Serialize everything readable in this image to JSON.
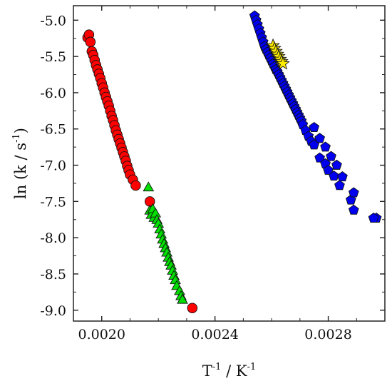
{
  "chart_data": {
    "type": "scatter",
    "title": "",
    "xlabel": {
      "base": "T",
      "sup": "-1",
      "sep": " / ",
      "unit": "K",
      "unit_sup": "-1"
    },
    "ylabel": {
      "prefix": "ln (k  / s",
      "sup": "-1",
      "suffix": ")"
    },
    "xlim": [
      0.0019,
      0.003
    ],
    "ylim": [
      -9.15,
      -4.8
    ],
    "x_ticks": [
      0.002,
      0.0024,
      0.0028
    ],
    "x_tick_labels": [
      "0.0020",
      "0.0024",
      "0.0028"
    ],
    "y_ticks": [
      -5.0,
      -5.5,
      -6.0,
      -6.5,
      -7.0,
      -7.5,
      -8.0,
      -8.5,
      -9.0
    ],
    "y_tick_labels": [
      "-5.0",
      "-5.5",
      "-6.0",
      "-6.5",
      "-7.0",
      "-7.5",
      "-8.0",
      "-8.5",
      "-9.0"
    ],
    "grid": false,
    "legend": "none",
    "series": [
      {
        "marker": "circle",
        "color": "#ff0000",
        "points": [
          [
            0.00195,
            -5.24
          ],
          [
            0.001955,
            -5.2
          ],
          [
            0.00196,
            -5.3
          ],
          [
            0.001965,
            -5.43
          ],
          [
            0.00197,
            -5.48
          ],
          [
            0.001975,
            -5.55
          ],
          [
            0.00198,
            -5.62
          ],
          [
            0.001985,
            -5.68
          ],
          [
            0.00199,
            -5.74
          ],
          [
            0.001995,
            -5.8
          ],
          [
            0.002,
            -5.87
          ],
          [
            0.002005,
            -5.93
          ],
          [
            0.00201,
            -6.0
          ],
          [
            0.002015,
            -6.06
          ],
          [
            0.00202,
            -6.12
          ],
          [
            0.002025,
            -6.18
          ],
          [
            0.00203,
            -6.25
          ],
          [
            0.002035,
            -6.32
          ],
          [
            0.00204,
            -6.38
          ],
          [
            0.002045,
            -6.45
          ],
          [
            0.00205,
            -6.52
          ],
          [
            0.002055,
            -6.58
          ],
          [
            0.00206,
            -6.64
          ],
          [
            0.002065,
            -6.7
          ],
          [
            0.00207,
            -6.76
          ],
          [
            0.002075,
            -6.82
          ],
          [
            0.00208,
            -6.88
          ],
          [
            0.002085,
            -6.94
          ],
          [
            0.00209,
            -7.01
          ],
          [
            0.002095,
            -7.07
          ],
          [
            0.0021,
            -7.13
          ],
          [
            0.00211,
            -7.2
          ],
          [
            0.00212,
            -7.28
          ],
          [
            0.00217,
            -7.5
          ],
          [
            0.00232,
            -8.97
          ]
        ]
      },
      {
        "marker": "triangle",
        "color": "#00dd00",
        "points": [
          [
            0.002165,
            -7.3
          ],
          [
            0.00217,
            -7.62
          ],
          [
            0.002175,
            -7.68
          ],
          [
            0.00218,
            -7.6
          ],
          [
            0.002185,
            -7.72
          ],
          [
            0.00219,
            -7.66
          ],
          [
            0.002195,
            -7.75
          ],
          [
            0.0022,
            -7.8
          ],
          [
            0.002205,
            -7.88
          ],
          [
            0.00221,
            -7.95
          ],
          [
            0.002215,
            -8.02
          ],
          [
            0.00222,
            -8.08
          ],
          [
            0.002225,
            -8.14
          ],
          [
            0.00223,
            -8.2
          ],
          [
            0.002235,
            -8.27
          ],
          [
            0.00224,
            -8.33
          ],
          [
            0.002245,
            -8.38
          ],
          [
            0.00225,
            -8.45
          ],
          [
            0.002255,
            -8.52
          ],
          [
            0.00226,
            -8.58
          ],
          [
            0.002265,
            -8.66
          ],
          [
            0.002275,
            -8.73
          ],
          [
            0.00228,
            -8.8
          ],
          [
            0.002285,
            -8.85
          ]
        ]
      },
      {
        "marker": "pentagon",
        "color": "#0000ee",
        "points": [
          [
            0.00254,
            -4.94
          ],
          [
            0.002545,
            -5.0
          ],
          [
            0.00255,
            -5.06
          ],
          [
            0.002555,
            -5.12
          ],
          [
            0.00256,
            -5.18
          ],
          [
            0.002565,
            -5.24
          ],
          [
            0.00257,
            -5.3
          ],
          [
            0.002575,
            -5.36
          ],
          [
            0.00258,
            -5.4
          ],
          [
            0.002585,
            -5.44
          ],
          [
            0.00259,
            -5.48
          ],
          [
            0.002595,
            -5.52
          ],
          [
            0.0026,
            -5.56
          ],
          [
            0.002605,
            -5.6
          ],
          [
            0.00261,
            -5.64
          ],
          [
            0.002615,
            -5.68
          ],
          [
            0.00262,
            -5.71
          ],
          [
            0.002625,
            -5.75
          ],
          [
            0.00263,
            -5.79
          ],
          [
            0.002635,
            -5.83
          ],
          [
            0.00264,
            -5.87
          ],
          [
            0.002645,
            -5.91
          ],
          [
            0.00265,
            -5.95
          ],
          [
            0.002655,
            -5.99
          ],
          [
            0.00266,
            -6.03
          ],
          [
            0.002665,
            -6.07
          ],
          [
            0.00267,
            -6.11
          ],
          [
            0.002675,
            -6.15
          ],
          [
            0.00268,
            -6.19
          ],
          [
            0.002685,
            -6.23
          ],
          [
            0.00269,
            -6.27
          ],
          [
            0.002695,
            -6.31
          ],
          [
            0.0027,
            -6.35
          ],
          [
            0.002705,
            -6.39
          ],
          [
            0.00271,
            -6.44
          ],
          [
            0.00272,
            -6.52
          ],
          [
            0.00273,
            -6.6
          ],
          [
            0.00274,
            -6.67
          ],
          [
            0.00275,
            -6.72
          ],
          [
            0.00277,
            -6.9
          ],
          [
            0.00279,
            -6.98
          ],
          [
            0.0028,
            -7.07
          ],
          [
            0.00282,
            -7.15
          ],
          [
            0.00284,
            -7.28
          ],
          [
            0.00288,
            -7.48
          ],
          [
            0.00289,
            -7.62
          ],
          [
            0.00297,
            -7.73
          ],
          [
            0.00275,
            -6.48
          ],
          [
            0.00277,
            -6.63
          ],
          [
            0.00279,
            -6.75
          ],
          [
            0.00281,
            -6.88
          ],
          [
            0.00283,
            -7.0
          ],
          [
            0.00285,
            -7.16
          ],
          [
            0.00289,
            -7.38
          ],
          [
            0.00296,
            -7.73
          ]
        ]
      },
      {
        "marker": "star",
        "color": "#ffee00",
        "points": [
          [
            0.002605,
            -5.35
          ],
          [
            0.00261,
            -5.39
          ],
          [
            0.002615,
            -5.43
          ],
          [
            0.00262,
            -5.47
          ],
          [
            0.002625,
            -5.5
          ],
          [
            0.00263,
            -5.54
          ],
          [
            0.002635,
            -5.57
          ],
          [
            0.00264,
            -5.6
          ]
        ]
      }
    ]
  }
}
